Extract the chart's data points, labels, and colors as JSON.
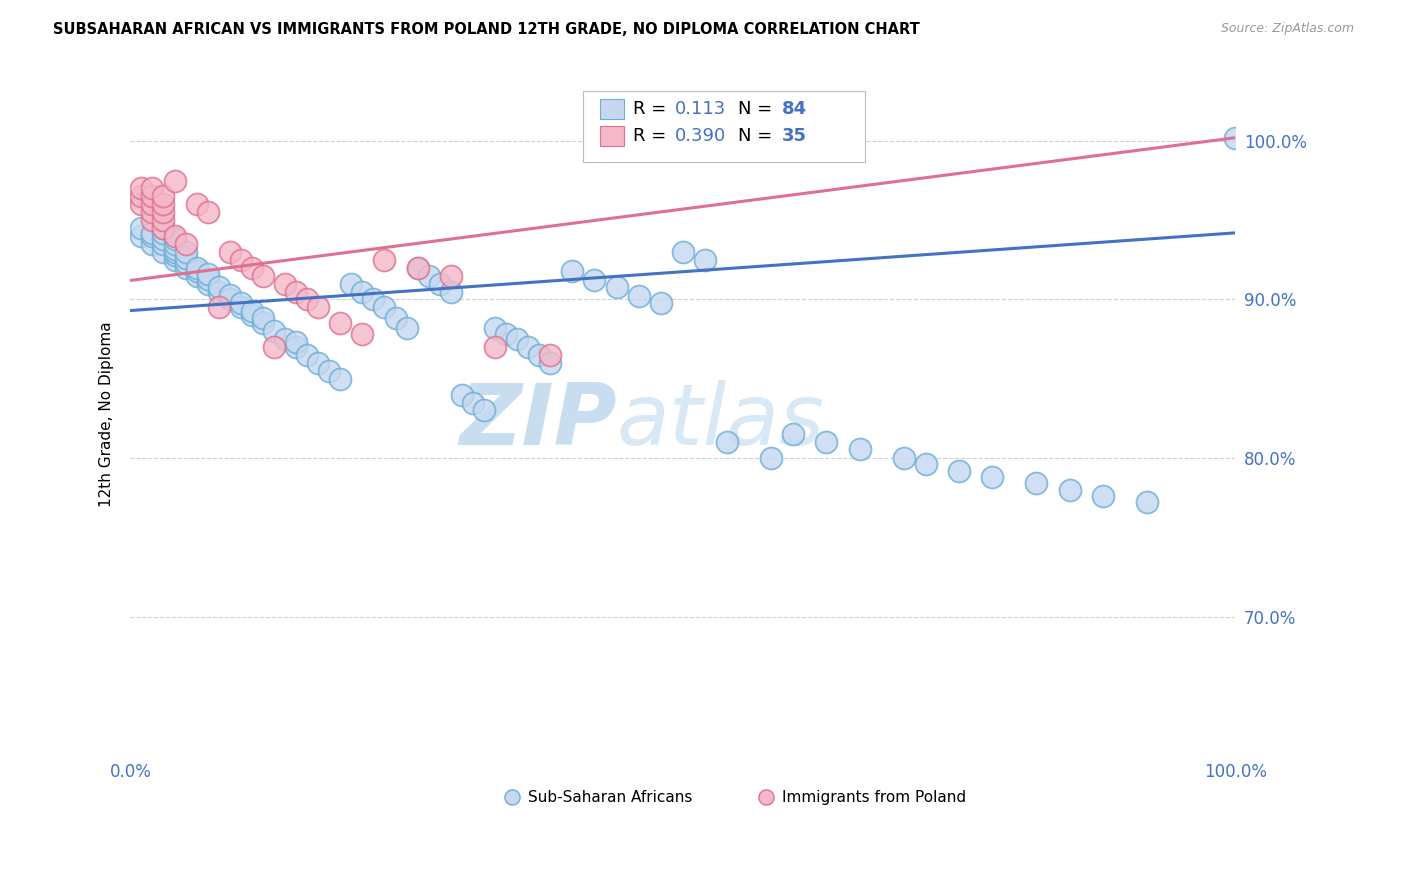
{
  "title": "SUBSAHARAN AFRICAN VS IMMIGRANTS FROM POLAND 12TH GRADE, NO DIPLOMA CORRELATION CHART",
  "source": "Source: ZipAtlas.com",
  "ylabel": "12th Grade, No Diploma",
  "ytick_values": [
    0.7,
    0.8,
    0.9,
    1.0
  ],
  "ytick_labels": [
    "70.0%",
    "80.0%",
    "90.0%",
    "100.0%"
  ],
  "xlim": [
    0.0,
    1.0
  ],
  "ylim": [
    0.615,
    1.04
  ],
  "blue_r": "0.113",
  "blue_n": "84",
  "pink_r": "0.390",
  "pink_n": "35",
  "blue_fill": "#c5d8f0",
  "blue_edge": "#6baed6",
  "pink_fill": "#f4b8c8",
  "pink_edge": "#e07090",
  "blue_line": "#4472c4",
  "pink_line": "#e07090",
  "text_blue": "#4472c4",
  "watermark_zip": "ZIP",
  "watermark_atlas": "atlas",
  "watermark_color": "#d0e4f4",
  "grid_color": "#d0d0d0",
  "blue_scatter_x": [
    0.01,
    0.01,
    0.02,
    0.02,
    0.02,
    0.03,
    0.03,
    0.03,
    0.03,
    0.03,
    0.04,
    0.04,
    0.04,
    0.04,
    0.04,
    0.04,
    0.05,
    0.05,
    0.05,
    0.05,
    0.06,
    0.06,
    0.06,
    0.07,
    0.07,
    0.07,
    0.08,
    0.08,
    0.09,
    0.09,
    0.1,
    0.1,
    0.11,
    0.11,
    0.12,
    0.12,
    0.13,
    0.14,
    0.15,
    0.15,
    0.16,
    0.17,
    0.18,
    0.19,
    0.2,
    0.21,
    0.22,
    0.23,
    0.24,
    0.25,
    0.26,
    0.27,
    0.28,
    0.29,
    0.3,
    0.31,
    0.32,
    0.33,
    0.34,
    0.35,
    0.36,
    0.37,
    0.38,
    0.4,
    0.42,
    0.44,
    0.46,
    0.48,
    0.5,
    0.52,
    0.54,
    0.58,
    0.6,
    0.63,
    0.66,
    0.7,
    0.72,
    0.75,
    0.78,
    0.82,
    0.85,
    0.88,
    0.92,
    1.0
  ],
  "blue_scatter_y": [
    0.94,
    0.945,
    0.935,
    0.94,
    0.942,
    0.93,
    0.935,
    0.938,
    0.942,
    0.945,
    0.925,
    0.928,
    0.93,
    0.932,
    0.935,
    0.938,
    0.92,
    0.923,
    0.926,
    0.93,
    0.915,
    0.918,
    0.92,
    0.91,
    0.913,
    0.916,
    0.905,
    0.908,
    0.9,
    0.903,
    0.895,
    0.898,
    0.89,
    0.893,
    0.885,
    0.888,
    0.88,
    0.875,
    0.87,
    0.873,
    0.865,
    0.86,
    0.855,
    0.85,
    0.91,
    0.905,
    0.9,
    0.895,
    0.888,
    0.882,
    0.92,
    0.915,
    0.91,
    0.905,
    0.84,
    0.835,
    0.83,
    0.882,
    0.878,
    0.875,
    0.87,
    0.865,
    0.86,
    0.918,
    0.912,
    0.908,
    0.902,
    0.898,
    0.93,
    0.925,
    0.81,
    0.8,
    0.815,
    0.81,
    0.806,
    0.8,
    0.796,
    0.792,
    0.788,
    0.784,
    0.78,
    0.776,
    0.772,
    1.002
  ],
  "pink_scatter_x": [
    0.01,
    0.01,
    0.01,
    0.02,
    0.02,
    0.02,
    0.02,
    0.02,
    0.03,
    0.03,
    0.03,
    0.03,
    0.03,
    0.04,
    0.04,
    0.05,
    0.06,
    0.07,
    0.08,
    0.09,
    0.1,
    0.11,
    0.12,
    0.13,
    0.14,
    0.15,
    0.16,
    0.17,
    0.19,
    0.21,
    0.23,
    0.26,
    0.29,
    0.33,
    0.38
  ],
  "pink_scatter_y": [
    0.96,
    0.965,
    0.97,
    0.95,
    0.955,
    0.96,
    0.965,
    0.97,
    0.945,
    0.95,
    0.955,
    0.96,
    0.965,
    0.94,
    0.975,
    0.935,
    0.96,
    0.955,
    0.895,
    0.93,
    0.925,
    0.92,
    0.915,
    0.87,
    0.91,
    0.905,
    0.9,
    0.895,
    0.885,
    0.878,
    0.925,
    0.92,
    0.915,
    0.87,
    0.865
  ],
  "blue_line_x0": 0.0,
  "blue_line_y0": 0.893,
  "blue_line_x1": 1.0,
  "blue_line_y1": 0.942,
  "pink_line_x0": 0.0,
  "pink_line_y0": 0.912,
  "pink_line_x1": 1.0,
  "pink_line_y1": 1.002
}
